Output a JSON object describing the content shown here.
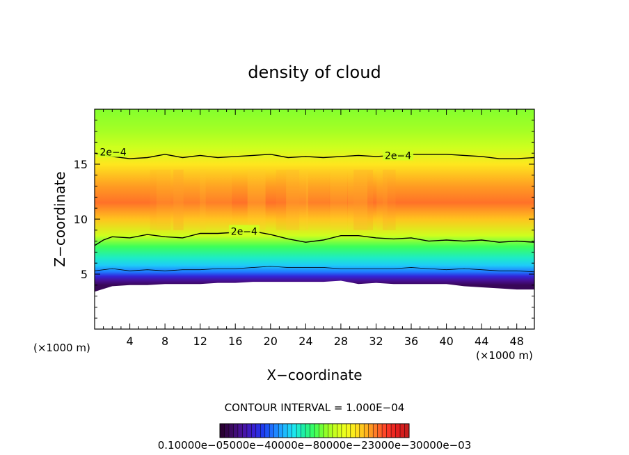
{
  "chart_data": {
    "type": "heatmap",
    "title": "density of cloud",
    "xlabel": "X−coordinate",
    "ylabel": "Z−coordinate",
    "x_unit_left": "(×1000 m)",
    "x_unit_right": "(×1000 m)",
    "xlim": [
      0,
      50
    ],
    "ylim": [
      0,
      20
    ],
    "x_ticks": [
      4,
      8,
      12,
      16,
      20,
      24,
      28,
      32,
      36,
      40,
      44,
      48
    ],
    "y_ticks": [
      5,
      10,
      15
    ],
    "contour_interval_text": "CONTOUR INTERVAL = 1.000E−04",
    "colorbar_labels_text": "0.10000e−05000e−40000e−80000e−23000e−30000e−03",
    "contour_labels": [
      {
        "text": "2e−4",
        "x": 2.1,
        "z": 16.1
      },
      {
        "text": "2e−4",
        "x": 34.5,
        "z": 15.8
      },
      {
        "text": "2e−4",
        "x": 17.0,
        "z": 8.9
      }
    ],
    "contours": [
      {
        "level": "2e-4",
        "x": [
          0,
          2,
          4,
          6,
          8,
          10,
          12,
          14,
          16,
          18,
          20,
          22,
          24,
          26,
          28,
          30,
          32,
          34,
          36,
          38,
          40,
          42,
          44,
          46,
          48,
          50
        ],
        "z": [
          16.0,
          15.7,
          15.5,
          15.6,
          15.9,
          15.6,
          15.8,
          15.6,
          15.7,
          15.8,
          15.9,
          15.6,
          15.7,
          15.6,
          15.7,
          15.8,
          15.7,
          15.8,
          15.9,
          15.9,
          15.9,
          15.8,
          15.7,
          15.5,
          15.5,
          15.6
        ]
      },
      {
        "level": "2e-4",
        "x": [
          0,
          1,
          2,
          4,
          6,
          8,
          10,
          12,
          14,
          16,
          18,
          20,
          22,
          24,
          26,
          28,
          30,
          32,
          34,
          36,
          38,
          40,
          42,
          44,
          46,
          48,
          50
        ],
        "z": [
          7.6,
          8.1,
          8.4,
          8.3,
          8.6,
          8.4,
          8.3,
          8.7,
          8.7,
          8.8,
          8.9,
          8.6,
          8.2,
          7.9,
          8.1,
          8.5,
          8.5,
          8.3,
          8.2,
          8.3,
          8.0,
          8.1,
          8.0,
          8.1,
          7.9,
          8.0,
          7.9
        ]
      },
      {
        "level": "1e-4",
        "x": [
          0,
          2,
          4,
          6,
          8,
          10,
          12,
          14,
          16,
          18,
          20,
          22,
          24,
          26,
          28,
          30,
          32,
          34,
          36,
          38,
          40,
          42,
          44,
          46,
          48,
          50
        ],
        "z": [
          5.3,
          5.5,
          5.3,
          5.4,
          5.3,
          5.4,
          5.4,
          5.5,
          5.5,
          5.6,
          5.7,
          5.6,
          5.6,
          5.6,
          5.5,
          5.5,
          5.5,
          5.5,
          5.6,
          5.5,
          5.4,
          5.5,
          5.4,
          5.3,
          5.3,
          5.2
        ]
      }
    ],
    "cloud_base_z": [
      3.4,
      3.9,
      4.0,
      4.0,
      4.1,
      4.1,
      4.1,
      4.2,
      4.2,
      4.3,
      4.3,
      4.3,
      4.3,
      4.3,
      4.4,
      4.1,
      4.2,
      4.1,
      4.1,
      4.1,
      4.1,
      3.9,
      3.8,
      3.7,
      3.6,
      3.6
    ],
    "field_description_levels": [
      {
        "z": 20,
        "value": 0.55
      },
      {
        "z": 18,
        "value": 0.58
      },
      {
        "z": 16.5,
        "value": 0.62
      },
      {
        "z": 15,
        "value": 0.72
      },
      {
        "z": 13,
        "value": 0.8
      },
      {
        "z": 11.5,
        "value": 0.84
      },
      {
        "z": 10,
        "value": 0.76
      },
      {
        "z": 8.5,
        "value": 0.62
      },
      {
        "z": 7.5,
        "value": 0.5
      },
      {
        "z": 6.5,
        "value": 0.42
      },
      {
        "z": 5.8,
        "value": 0.36
      },
      {
        "z": 5.2,
        "value": 0.28
      },
      {
        "z": 4.8,
        "value": 0.18
      },
      {
        "z": 4.4,
        "value": 0.1
      },
      {
        "z": 4.0,
        "value": 0.04
      }
    ],
    "colorbar": {
      "n_bins": 42,
      "colors": [
        "#2a0033",
        "#3d0a66",
        "#4a12a0",
        "#3a1ed0",
        "#1e3cf0",
        "#1e78ff",
        "#1eb4ff",
        "#1ee6f0",
        "#1ef0a0",
        "#3cff5a",
        "#8cff28",
        "#c8ff1e",
        "#f0ff1e",
        "#ffe61e",
        "#ffb41e",
        "#ff7828",
        "#ff3c28",
        "#e61e1e",
        "#c81e1e"
      ]
    },
    "grid": false,
    "legend": "colorbar-bottom"
  }
}
